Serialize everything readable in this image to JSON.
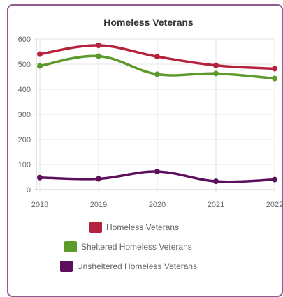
{
  "chart_data": {
    "type": "line",
    "title": "Homeless Veterans",
    "categories": [
      "2018",
      "2019",
      "2020",
      "2021",
      "2022"
    ],
    "series": [
      {
        "name": "Homeless Veterans",
        "color": "#b5223d",
        "values": [
          540,
          575,
          530,
          495,
          482
        ]
      },
      {
        "name": "Sheltered Homeless Veterans",
        "color": "#5c9a2b",
        "values": [
          493,
          532,
          460,
          463,
          443
        ]
      },
      {
        "name": "Unsheltered Homeless Veterans",
        "color": "#5c0f5c",
        "values": [
          48,
          43,
          72,
          33,
          40
        ]
      }
    ],
    "ylim": [
      0,
      600
    ],
    "yticks": [
      0,
      100,
      200,
      300,
      400,
      500,
      600
    ],
    "grid": true,
    "legend": "bottom"
  }
}
